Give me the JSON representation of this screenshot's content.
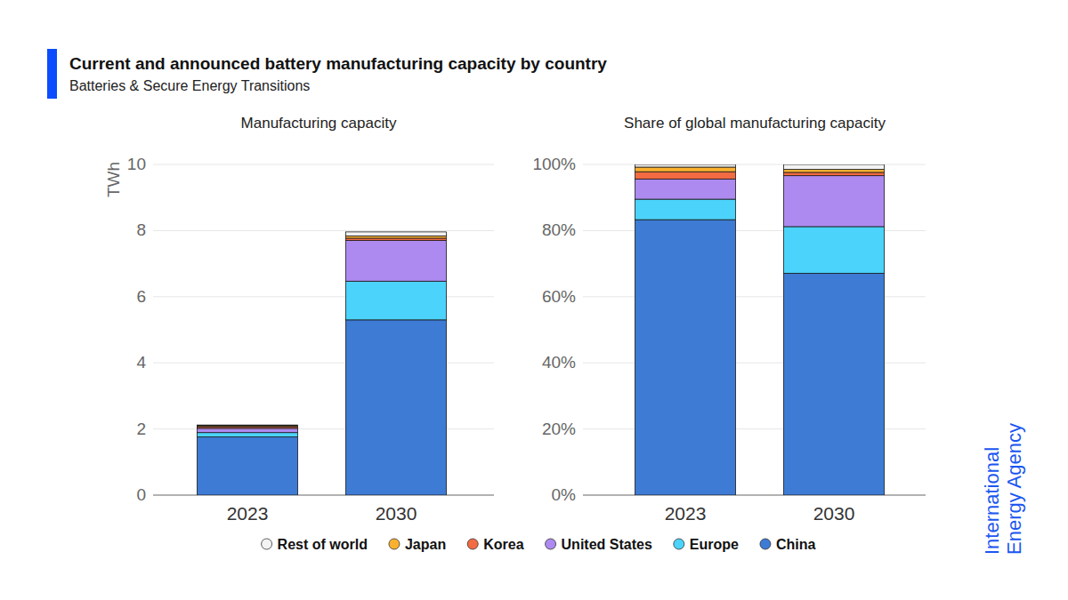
{
  "header": {
    "title": "Current and announced battery manufacturing capacity by country",
    "subtitle": "Batteries & Secure Energy Transitions",
    "logo": [
      "International",
      "Energy Agency"
    ]
  },
  "chart_data": [
    {
      "type": "bar",
      "title": "Manufacturing capacity",
      "y_label": "TWh",
      "stacked": true,
      "grid": true,
      "legend": "bottom",
      "categories": [
        "2023",
        "2030"
      ],
      "ylim": [
        0,
        10
      ],
      "yticks": [
        0,
        2,
        4,
        6,
        8,
        10
      ],
      "series": [
        {
          "name": "China",
          "color": "#3d7bd4",
          "values": [
            1.76,
            5.3
          ]
        },
        {
          "name": "Europe",
          "color": "#4bd3fb",
          "values": [
            0.13,
            1.17
          ]
        },
        {
          "name": "United States",
          "color": "#ad8aef",
          "values": [
            0.13,
            1.23
          ]
        },
        {
          "name": "Korea",
          "color": "#f26b43",
          "values": [
            0.05,
            0.07
          ]
        },
        {
          "name": "Japan",
          "color": "#fbb12f",
          "values": [
            0.03,
            0.07
          ]
        },
        {
          "name": "Rest of world",
          "color": "#f3f3f3",
          "values": [
            0.02,
            0.12
          ]
        }
      ]
    },
    {
      "type": "bar",
      "title": "Share of global manufacturing capacity",
      "stacked": true,
      "grid": true,
      "categories": [
        "2023",
        "2030"
      ],
      "ylim": [
        0,
        100
      ],
      "yticks": [
        {
          "value": 0,
          "label": "0%"
        },
        {
          "value": 20,
          "label": "20%"
        },
        {
          "value": 40,
          "label": "40%"
        },
        {
          "value": 60,
          "label": "60%"
        },
        {
          "value": 80,
          "label": "80%"
        },
        {
          "value": 100,
          "label": "100%"
        }
      ],
      "series": [
        {
          "name": "China",
          "color": "#3d7bd4",
          "values": [
            83.3,
            67.1
          ]
        },
        {
          "name": "Europe",
          "color": "#4bd3fb",
          "values": [
            6.2,
            14.1
          ]
        },
        {
          "name": "United States",
          "color": "#ad8aef",
          "values": [
            6.1,
            15.4
          ]
        },
        {
          "name": "Korea",
          "color": "#f26b43",
          "values": [
            2.2,
            1.0
          ]
        },
        {
          "name": "Japan",
          "color": "#fbb12f",
          "values": [
            1.4,
            0.9
          ]
        },
        {
          "name": "Rest of world",
          "color": "#f3f3f3",
          "values": [
            0.8,
            1.5
          ]
        }
      ]
    }
  ]
}
